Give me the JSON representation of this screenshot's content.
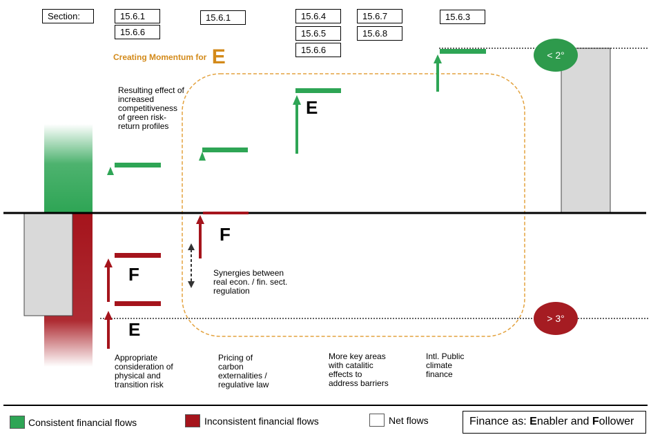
{
  "sections": {
    "label": "Section:",
    "col1": [
      "15.6.1",
      "15.6.6"
    ],
    "col2": [
      "15.6.1"
    ],
    "col3": [
      "15.6.4",
      "15.6.5",
      "15.6.6"
    ],
    "col4": [
      "15.6.7",
      "15.6.8"
    ],
    "col5": [
      "15.6.3"
    ]
  },
  "momentum": {
    "prefix": "Creating Momentum for",
    "letter": "E"
  },
  "notes": {
    "competitiveness": [
      "Resulting effect of",
      "increased",
      "competitiveness",
      "of green risk-",
      "return profiles"
    ],
    "synergies": [
      "Synergies between",
      "real econ. / fin. sect.",
      "regulation"
    ],
    "appropriate": [
      "Appropriate",
      "consideration of",
      "physical and",
      "transition risk"
    ],
    "pricing": [
      "Pricing of",
      "carbon",
      "externalities /",
      "regulative law"
    ],
    "key_areas": [
      "More key areas",
      "with catalitic",
      "effects to",
      "address barriers"
    ],
    "intl": [
      "Intl. Public",
      "climate",
      "finance"
    ]
  },
  "letters": {
    "enabler": "E",
    "follower": "F"
  },
  "badges": {
    "green": "< 2°",
    "red": "> 3°"
  },
  "colors": {
    "green": "#2ea555",
    "red": "#a5141c",
    "gray": "#d9d9d9",
    "orange": "#d38a1a",
    "green_badge": "#2e9a4c",
    "red_badge": "#a51c22"
  },
  "legend": {
    "consistent": "Consistent financial flows",
    "inconsistent": "Inconsistent financial flows",
    "net": "Net flows",
    "finance_prefix": "Finance as: ",
    "enabler_initial": "E",
    "enabler_rest": "nabler and ",
    "follower_initial": "F",
    "follower_rest": "ollower"
  }
}
